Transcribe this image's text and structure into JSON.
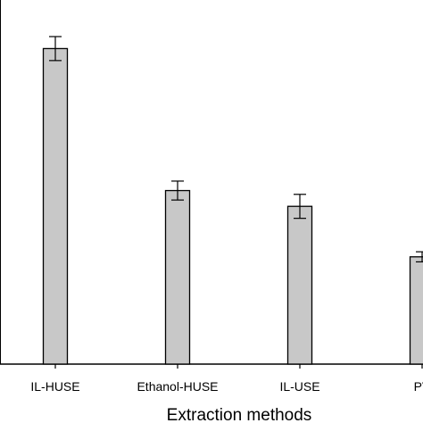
{
  "chart_data": {
    "type": "bar",
    "title": "",
    "xlabel": "Extraction methods",
    "ylabel": "",
    "categories": [
      "IL-HUSE",
      "Ethanol-HUSE",
      "IL-USE",
      "PV"
    ],
    "values": [
      100,
      55,
      50,
      34
    ],
    "errors": [
      3.8,
      3.0,
      3.8,
      1.6
    ],
    "ylim": [
      0,
      112
    ],
    "bar_color": "#c8c8c8",
    "grid": false,
    "legend": "none"
  }
}
